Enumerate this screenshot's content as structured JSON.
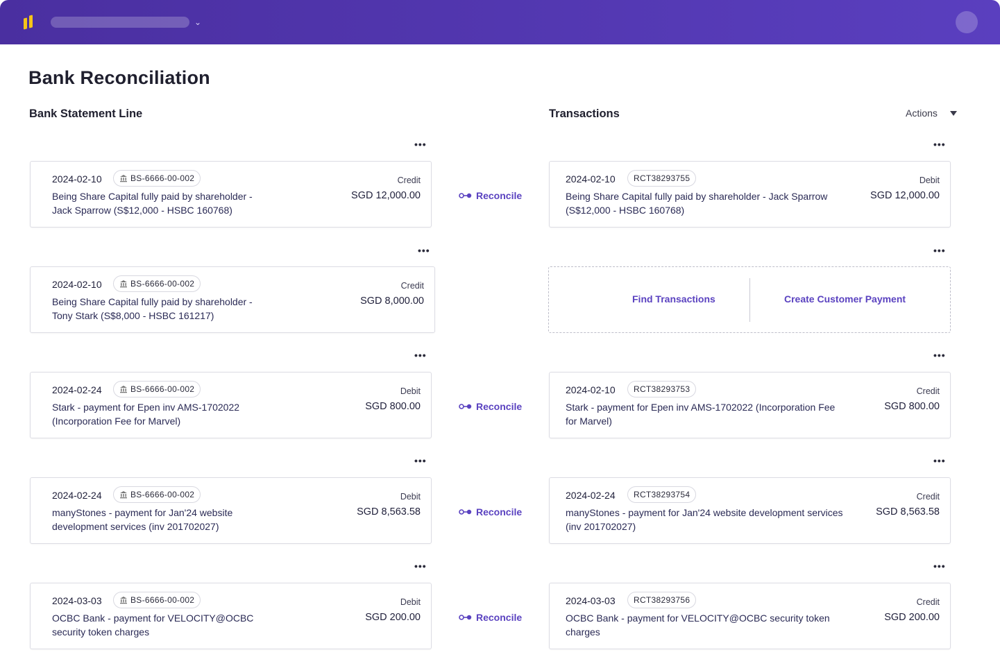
{
  "header": {
    "logo_icon": "brand-logo-icon",
    "org_chevron": "⌄",
    "avatar_icon": "user-avatar"
  },
  "page": {
    "title": "Bank Reconciliation",
    "left_heading": "Bank Statement Line",
    "right_heading": "Transactions",
    "actions_label": "Actions",
    "more_label": "•••"
  },
  "rows": [
    {
      "statement": {
        "date": "2024-02-10",
        "ref": "BS-6666-00-002",
        "desc": "Being Share Capital fully paid by shareholder - Jack Sparrow (S$12,000 - HSBC 160768)",
        "type": "Credit",
        "amount": "SGD 12,000.00"
      },
      "reconcile_label": "Reconcile",
      "transaction": {
        "date": "2024-02-10",
        "ref": "RCT38293755",
        "desc": "Being Share Capital fully paid by shareholder - Jack Sparrow (S$12,000 - HSBC 160768)",
        "type": "Debit",
        "amount": "SGD 12,000.00"
      }
    },
    {
      "statement": {
        "date": "2024-02-10",
        "ref": "BS-6666-00-002",
        "desc": "Being Share Capital fully paid by shareholder - Tony Stark (S$8,000 - HSBC 161217)",
        "type": "Credit",
        "amount": "SGD 8,000.00"
      },
      "find_label": "Find Transactions",
      "create_label": "Create Customer Payment"
    },
    {
      "statement": {
        "date": "2024-02-24",
        "ref": "BS-6666-00-002",
        "desc": "Stark - payment for Epen inv AMS-1702022 (Incorporation Fee for Marvel)",
        "type": "Debit",
        "amount": "SGD 800.00"
      },
      "reconcile_label": "Reconcile",
      "transaction": {
        "date": "2024-02-10",
        "ref": "RCT38293753",
        "desc": "Stark - payment for Epen inv AMS-1702022 (Incorporation Fee for Marvel)",
        "type": "Credit",
        "amount": "SGD 800.00"
      }
    },
    {
      "statement": {
        "date": "2024-02-24",
        "ref": "BS-6666-00-002",
        "desc": "manyStones - payment for Jan'24 website development services (inv 201702027)",
        "type": "Debit",
        "amount": "SGD 8,563.58"
      },
      "reconcile_label": "Reconcile",
      "transaction": {
        "date": "2024-02-24",
        "ref": "RCT38293754",
        "desc": "manyStones - payment for Jan'24 website development services (inv 201702027)",
        "type": "Credit",
        "amount": "SGD 8,563.58"
      }
    },
    {
      "statement": {
        "date": "2024-03-03",
        "ref": "BS-6666-00-002",
        "desc": "OCBC Bank - payment for VELOCITY@OCBC security token charges",
        "type": "Debit",
        "amount": "SGD 200.00"
      },
      "reconcile_label": "Reconcile",
      "transaction": {
        "date": "2024-03-03",
        "ref": "RCT38293756",
        "desc": "OCBC Bank - payment for VELOCITY@OCBC security token charges",
        "type": "Credit",
        "amount": "SGD 200.00"
      }
    }
  ],
  "colors": {
    "header": "#4a2fa0",
    "accent": "#5a42c0",
    "logo": "#f5c518"
  }
}
